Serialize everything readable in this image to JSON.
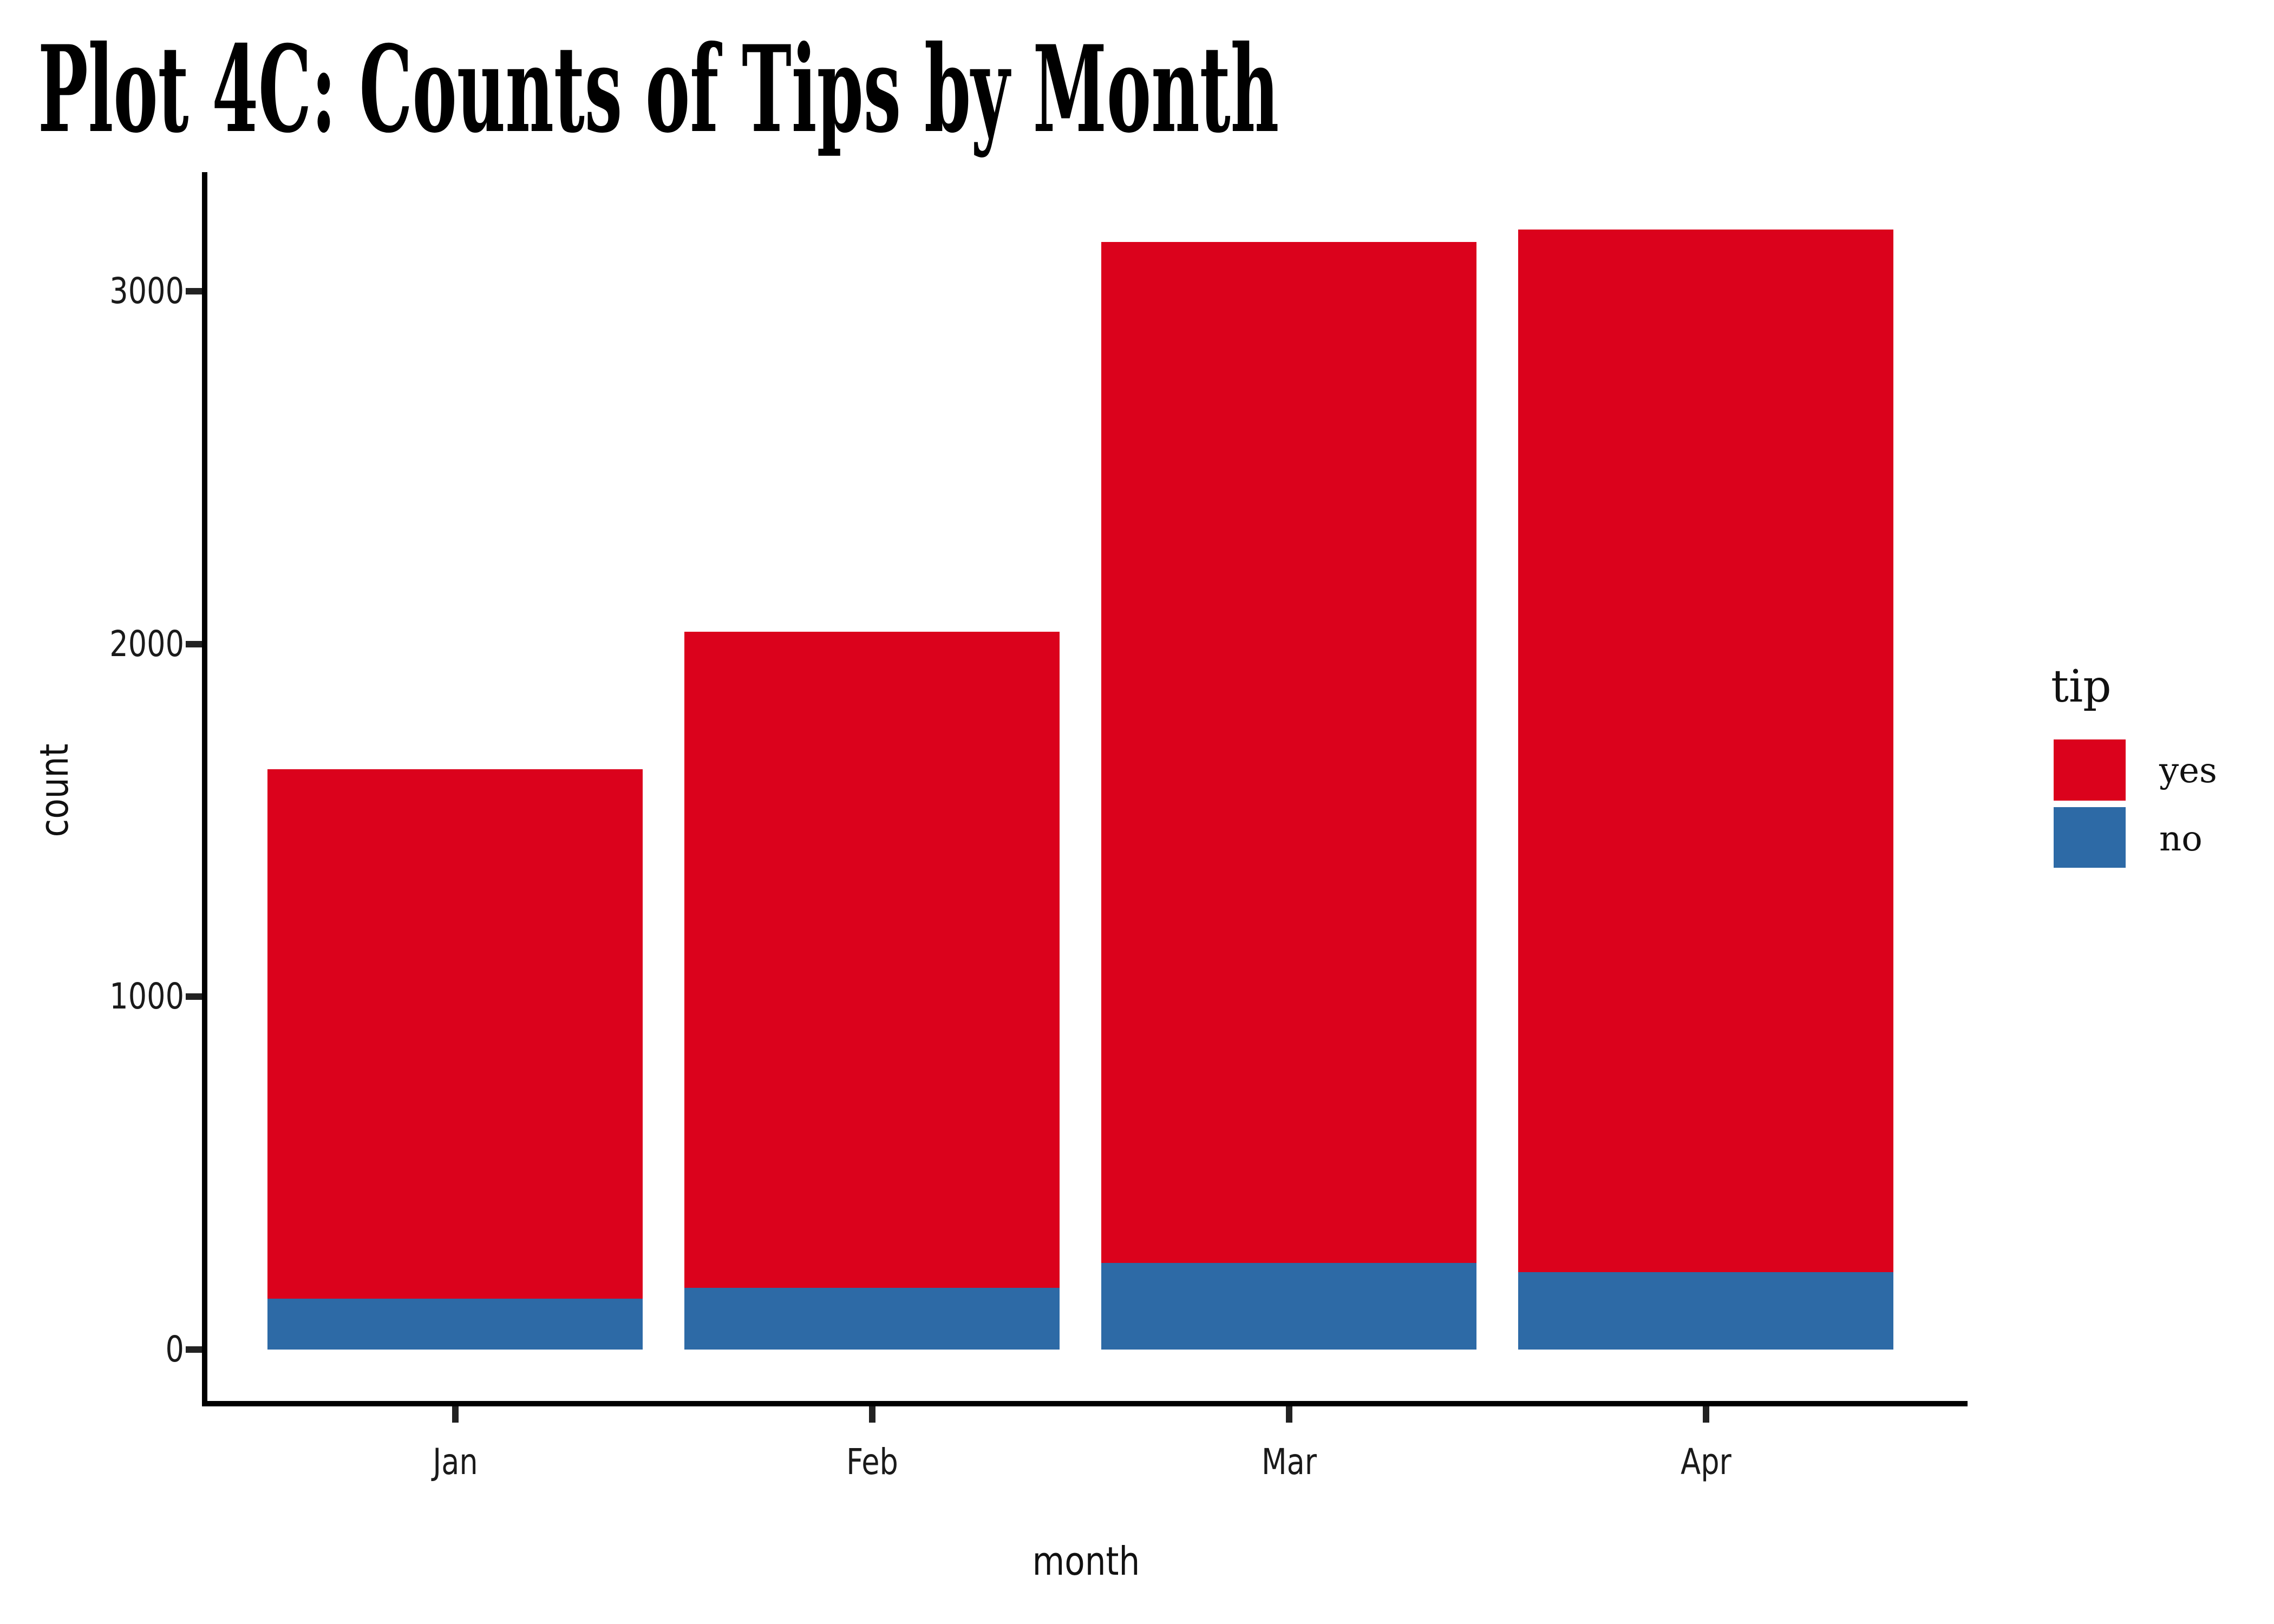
{
  "title": "Plot 4C: Counts of Tips by Month",
  "chart_data": {
    "type": "bar",
    "stacked": true,
    "title": "Plot 4C: Counts of Tips by Month",
    "xlabel": "month",
    "ylabel": "count",
    "categories": [
      "Jan",
      "Feb",
      "Mar",
      "Apr"
    ],
    "series": [
      {
        "name": "yes",
        "color": "#DB021C",
        "values": [
          1500,
          1860,
          2895,
          2955
        ]
      },
      {
        "name": "no",
        "color": "#2D6AA6",
        "values": [
          145,
          175,
          245,
          220
        ]
      }
    ],
    "stack_order_bottom_to_top": [
      "no",
      "yes"
    ],
    "ylim": [
      0,
      3350
    ],
    "yticks": [
      0,
      1000,
      2000,
      3000
    ],
    "grid": false,
    "legend_position": "right",
    "legend_title": "tip"
  },
  "axis": {
    "xlabel": "month",
    "ylabel": "count",
    "ytick_labels": [
      "0",
      "1000",
      "2000",
      "3000"
    ],
    "xtick_labels": [
      "Jan",
      "Feb",
      "Mar",
      "Apr"
    ]
  },
  "legend": {
    "title": "tip",
    "items": [
      {
        "label": "yes",
        "color": "#DB021C"
      },
      {
        "label": "no",
        "color": "#2D6AA6"
      }
    ]
  },
  "colors": {
    "yes": "#DB021C",
    "no": "#2D6AA6",
    "axis": "#000000",
    "text": "#1A1A1A",
    "background": "#FFFFFF"
  }
}
